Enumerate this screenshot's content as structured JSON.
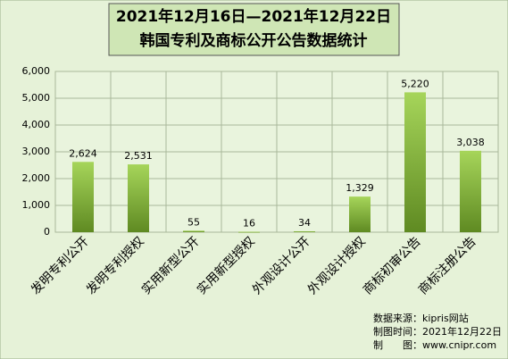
{
  "chart_data": {
    "type": "bar",
    "title": "2021年12月16日—2021年12月22日",
    "subtitle": "韩国专利及商标公开公告数据统计",
    "categories": [
      "发明专利公开",
      "发明专利授权",
      "实用新型公开",
      "实用新型授权",
      "外观设计公开",
      "外观设计授权",
      "商标初审公告",
      "商标注册公告"
    ],
    "values": [
      2624,
      2531,
      55,
      16,
      34,
      1329,
      5220,
      3038
    ],
    "value_labels": [
      "2,624",
      "2,531",
      "55",
      "16",
      "34",
      "1,329",
      "5,220",
      "3,038"
    ],
    "color": "#a6d55a",
    "ylim": [
      0,
      6000
    ],
    "yticks": [
      0,
      {
        "value": 1000,
        "label": "1,000"
      },
      {
        "value": 2000,
        "label": "2,000"
      },
      {
        "value": 3000,
        "label": "3,000"
      },
      {
        "value": 4000,
        "label": "4,000"
      },
      {
        "value": 5000,
        "label": "5,000"
      },
      {
        "value": 6000,
        "label": "6,000"
      }
    ],
    "grid": true,
    "source_notes": [
      "数据来源：kipris网站",
      "制图时间：2021年12月22日",
      "制　　图：www.cnipr.com"
    ]
  }
}
